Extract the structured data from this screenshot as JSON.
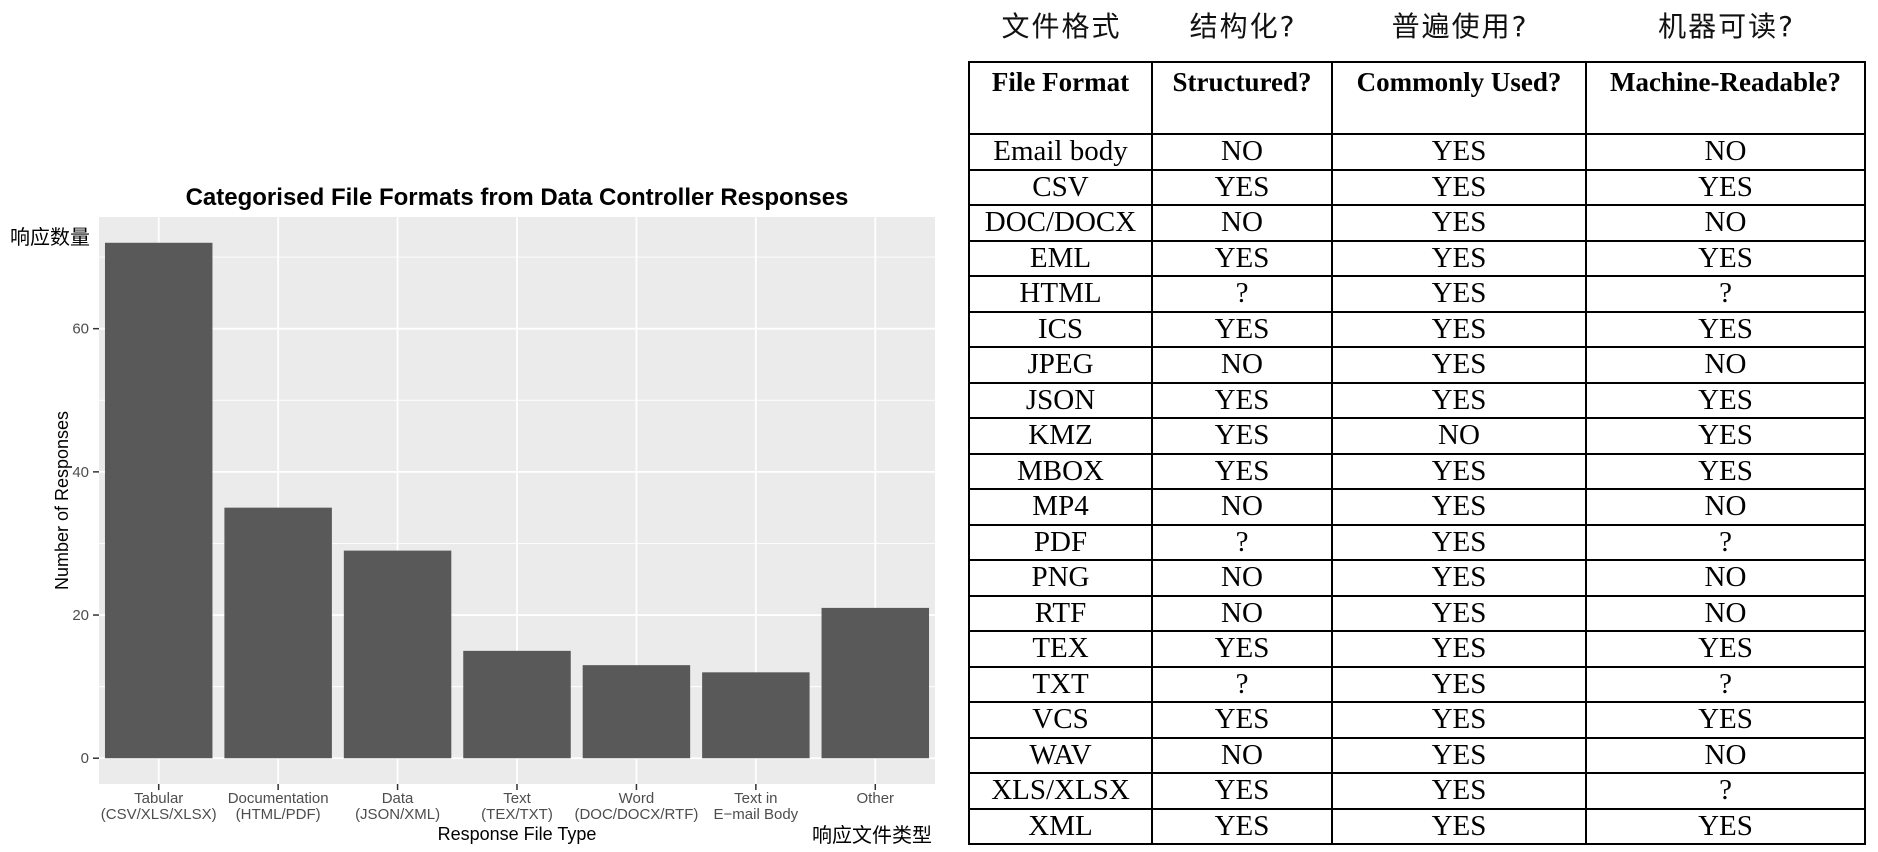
{
  "chart_data": {
    "type": "bar",
    "title": "Categorised File Formats from Data Controller Responses",
    "xlabel": "Response File Type",
    "ylabel": "Number of Responses",
    "categories": [
      [
        "Tabular",
        "(CSV/XLS/XLSX)"
      ],
      [
        "Documentation",
        "(HTML/PDF)"
      ],
      [
        "Data",
        "(JSON/XML)"
      ],
      [
        "Text",
        "(TEX/TXT)"
      ],
      [
        "Word",
        "(DOC/DOCX/RTF)"
      ],
      [
        "Text in",
        "E−mail Body"
      ],
      [
        "Other"
      ]
    ],
    "values": [
      72,
      35,
      29,
      15,
      13,
      12,
      21
    ],
    "yticks": [
      0,
      20,
      40,
      60
    ],
    "ylim": [
      -3.6,
      75.6
    ],
    "grid": true,
    "colors": {
      "panel_bg": "#EBEBEB",
      "grid_major": "#FFFFFF",
      "bar": "#595959",
      "tick_text": "#4D4D4D"
    }
  },
  "annotations": {
    "y_cn": "响应数量",
    "x_cn": "响应文件类型"
  },
  "table": {
    "cn_headers": [
      "文件格式",
      "结构化?",
      "普遍使用?",
      "机器可读?"
    ],
    "headers": [
      "File Format",
      "Structured?",
      "Commonly Used?",
      "Machine-Readable?"
    ],
    "rows": [
      [
        "Email body",
        "NO",
        "YES",
        "NO"
      ],
      [
        "CSV",
        "YES",
        "YES",
        "YES"
      ],
      [
        "DOC/DOCX",
        "NO",
        "YES",
        "NO"
      ],
      [
        "EML",
        "YES",
        "YES",
        "YES"
      ],
      [
        "HTML",
        "?",
        "YES",
        "?"
      ],
      [
        "ICS",
        "YES",
        "YES",
        "YES"
      ],
      [
        "JPEG",
        "NO",
        "YES",
        "NO"
      ],
      [
        "JSON",
        "YES",
        "YES",
        "YES"
      ],
      [
        "KMZ",
        "YES",
        "NO",
        "YES"
      ],
      [
        "MBOX",
        "YES",
        "YES",
        "YES"
      ],
      [
        "MP4",
        "NO",
        "YES",
        "NO"
      ],
      [
        "PDF",
        "?",
        "YES",
        "?"
      ],
      [
        "PNG",
        "NO",
        "YES",
        "NO"
      ],
      [
        "RTF",
        "NO",
        "YES",
        "NO"
      ],
      [
        "TEX",
        "YES",
        "YES",
        "YES"
      ],
      [
        "TXT",
        "?",
        "YES",
        "?"
      ],
      [
        "VCS",
        "YES",
        "YES",
        "YES"
      ],
      [
        "WAV",
        "NO",
        "YES",
        "NO"
      ],
      [
        "XLS/XLSX",
        "YES",
        "YES",
        "?"
      ],
      [
        "XML",
        "YES",
        "YES",
        "YES"
      ]
    ]
  }
}
